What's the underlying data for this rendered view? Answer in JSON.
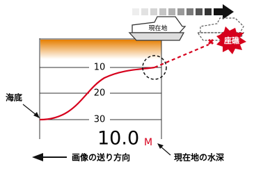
{
  "boat": {
    "label": "現在地"
  },
  "hazard": {
    "label": "座礁"
  },
  "screen": {
    "depth_labels": [
      "10",
      "20",
      "30"
    ],
    "depth_value": "10.0",
    "depth_unit": "M"
  },
  "annotations": {
    "seabed": "海底",
    "scroll_direction": "画像の送り方向",
    "current_depth": "現在地の水深"
  }
}
